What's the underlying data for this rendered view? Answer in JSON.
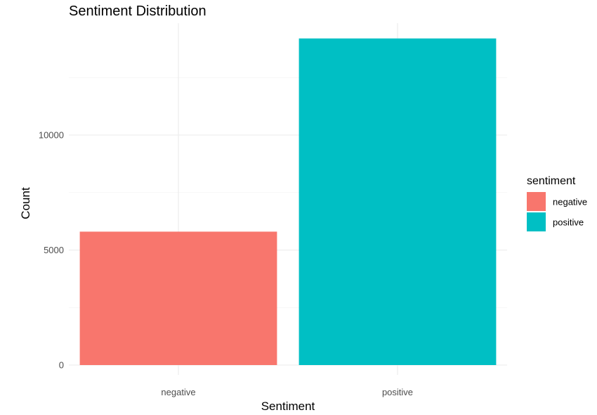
{
  "chart_data": {
    "type": "bar",
    "title": "Sentiment Distribution",
    "xlabel": "Sentiment",
    "ylabel": "Count",
    "categories": [
      "negative",
      "positive"
    ],
    "values": [
      5800,
      14200
    ],
    "ylim": [
      0,
      15000
    ],
    "yticks": [
      0,
      5000,
      10000
    ],
    "ytick_labels": [
      "0",
      "5000",
      "10000"
    ],
    "grid": true,
    "legend": {
      "title": "sentiment",
      "position": "right",
      "entries": [
        "negative",
        "positive"
      ]
    },
    "colors": {
      "negative": "#F8766D",
      "positive": "#00BFC4"
    }
  }
}
